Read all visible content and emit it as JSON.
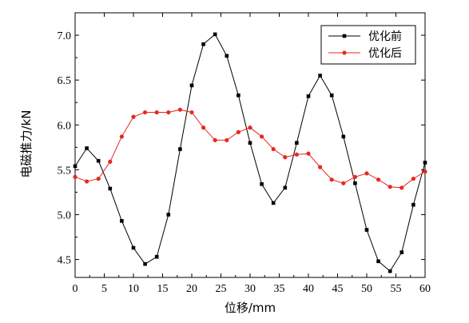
{
  "chart_data": {
    "type": "line",
    "title": "",
    "xlabel": "位移/mm",
    "ylabel": "电磁推力/kN",
    "xlim": [
      0,
      60
    ],
    "ylim": [
      4.3,
      7.25
    ],
    "xticks": [
      0,
      5,
      10,
      15,
      20,
      25,
      30,
      35,
      40,
      45,
      50,
      55,
      60
    ],
    "yticks": [
      4.5,
      5.0,
      5.5,
      6.0,
      6.5,
      7.0
    ],
    "xtick_labels": [
      "0",
      "5",
      "10",
      "15",
      "20",
      "25",
      "30",
      "35",
      "40",
      "45",
      "50",
      "55",
      "60"
    ],
    "ytick_labels": [
      "4.5",
      "5.0",
      "5.5",
      "6.0",
      "6.5",
      "7.0"
    ],
    "grid": false,
    "legend_position": "top-right",
    "series": [
      {
        "name": "优化前",
        "color": "#000000",
        "marker": "square",
        "x": [
          0,
          2,
          4,
          6,
          8,
          10,
          12,
          14,
          16,
          18,
          20,
          22,
          24,
          26,
          28,
          30,
          32,
          34,
          36,
          38,
          40,
          42,
          44,
          46,
          48,
          50,
          52,
          54,
          56,
          58,
          60
        ],
        "y": [
          5.54,
          5.74,
          5.6,
          5.29,
          4.93,
          4.63,
          4.45,
          4.53,
          5.0,
          5.73,
          6.44,
          6.9,
          7.01,
          6.77,
          6.33,
          5.8,
          5.34,
          5.13,
          5.3,
          5.8,
          6.32,
          6.55,
          6.33,
          5.87,
          5.35,
          4.83,
          4.48,
          4.37,
          4.58,
          5.11,
          5.58
        ]
      },
      {
        "name": "优化后",
        "color": "#e8281e",
        "marker": "circle",
        "x": [
          0,
          2,
          4,
          6,
          8,
          10,
          12,
          14,
          16,
          18,
          20,
          22,
          24,
          26,
          28,
          30,
          32,
          34,
          36,
          38,
          40,
          42,
          44,
          46,
          48,
          50,
          52,
          54,
          56,
          58,
          60
        ],
        "y": [
          5.42,
          5.37,
          5.4,
          5.59,
          5.87,
          6.09,
          6.14,
          6.14,
          6.14,
          6.17,
          6.14,
          5.97,
          5.83,
          5.83,
          5.92,
          5.97,
          5.87,
          5.73,
          5.64,
          5.67,
          5.68,
          5.53,
          5.39,
          5.35,
          5.42,
          5.46,
          5.39,
          5.31,
          5.3,
          5.4,
          5.48
        ]
      }
    ]
  }
}
